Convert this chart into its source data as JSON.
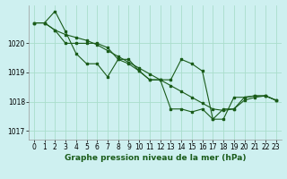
{
  "title": "Graphe pression niveau de la mer (hPa)",
  "background_color": "#cef0f0",
  "grid_color": "#aaddcc",
  "line_color": "#1a5c1a",
  "xlim": [
    -0.5,
    23.5
  ],
  "ylim": [
    1016.7,
    1021.3
  ],
  "yticks": [
    1017,
    1018,
    1019,
    1020
  ],
  "xticks": [
    0,
    1,
    2,
    3,
    4,
    5,
    6,
    7,
    8,
    9,
    10,
    11,
    12,
    13,
    14,
    15,
    16,
    17,
    18,
    19,
    20,
    21,
    22,
    23
  ],
  "series": [
    [
      1020.7,
      1020.7,
      1021.1,
      1020.4,
      1019.65,
      1019.3,
      1019.3,
      1018.85,
      1019.45,
      1019.3,
      1019.05,
      1018.75,
      1018.75,
      1017.75,
      1017.75,
      1017.65,
      1017.75,
      1017.4,
      1017.75,
      1017.75,
      1018.15,
      1018.2,
      1018.2,
      1018.05
    ],
    [
      1020.7,
      1020.7,
      1020.45,
      1020.0,
      1020.0,
      1020.0,
      1020.0,
      1019.85,
      1019.45,
      1019.45,
      1019.05,
      1018.75,
      1018.75,
      1018.75,
      1019.45,
      1019.3,
      1019.05,
      1017.4,
      1017.4,
      1018.15,
      1018.15,
      1018.2,
      1018.2,
      1018.05
    ],
    [
      1020.7,
      1020.7,
      1020.45,
      1020.3,
      1020.2,
      1020.1,
      1019.95,
      1019.75,
      1019.55,
      1019.35,
      1019.15,
      1018.95,
      1018.75,
      1018.55,
      1018.35,
      1018.15,
      1017.95,
      1017.75,
      1017.7,
      1017.75,
      1018.05,
      1018.15,
      1018.2,
      1018.05
    ]
  ],
  "title_fontsize": 6.5,
  "tick_fontsize": 5.5
}
